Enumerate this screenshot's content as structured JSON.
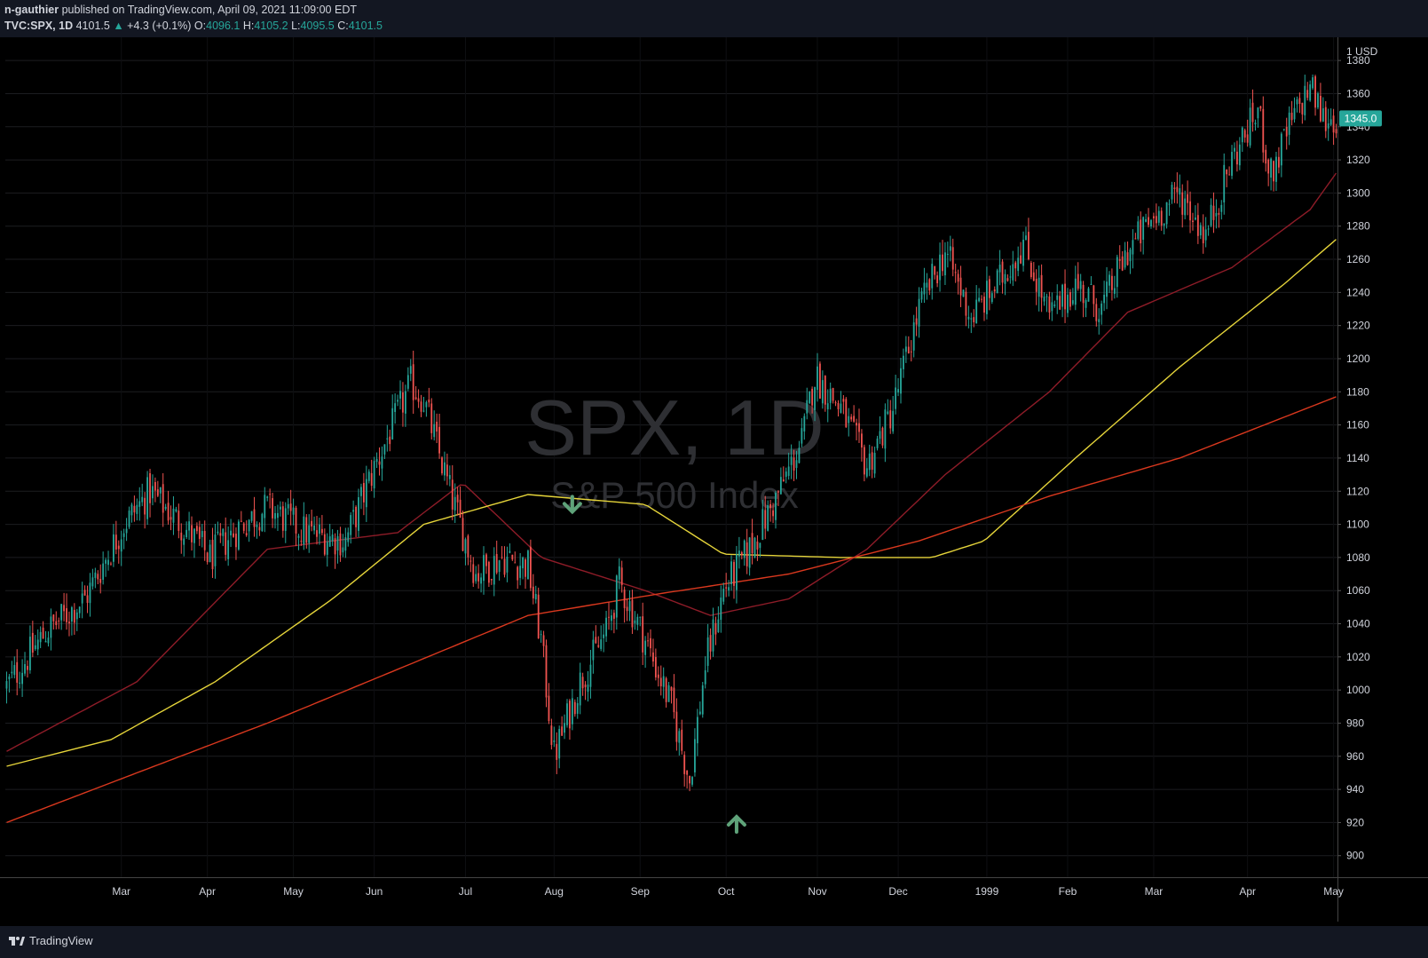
{
  "header": {
    "author": "n-gauthier",
    "published_text": "published on TradingView.com, April 09, 2021 11:09:00 EDT",
    "symbol": "TVC:SPX, 1D",
    "last": "4101.5",
    "change_arrow": "▲",
    "change": "+4.3 (+0.1%)",
    "open_label": "O:",
    "open": "4096.1",
    "high_label": "H:",
    "high": "4105.2",
    "low_label": "L:",
    "low": "4095.5",
    "close_label": "C:",
    "close": "4101.5"
  },
  "watermark": {
    "symbol": "SPX, 1D",
    "name": "S&P 500 Index"
  },
  "footer": {
    "brand": "TradingView"
  },
  "colors": {
    "up": "#26a69a",
    "down": "#ef5350",
    "ma_fast": "#8e1c28",
    "ma_mid": "#e5d43a",
    "ma_slow": "#d9381e",
    "background": "#000000",
    "price_tag": "#26a69a"
  },
  "chart_data": {
    "type": "candlestick",
    "ylim": [
      887,
      1394
    ],
    "y_ticks": [
      900,
      920,
      940,
      960,
      980,
      1000,
      1020,
      1040,
      1060,
      1080,
      1100,
      1120,
      1140,
      1160,
      1180,
      1200,
      1220,
      1240,
      1260,
      1280,
      1300,
      1320,
      1340,
      1360,
      1380
    ],
    "x_ticks": [
      "Mar",
      "Apr",
      "May",
      "Jun",
      "Jul",
      "Aug",
      "Sep",
      "Oct",
      "Nov",
      "Dec",
      "1999",
      "Feb",
      "Mar",
      "Apr",
      "May"
    ],
    "currency_label": "USD",
    "last_price_label": "1345.0",
    "last_price": 1345.0,
    "price_anchors": [
      [
        0,
        1002
      ],
      [
        15,
        1035
      ],
      [
        30,
        1055
      ],
      [
        45,
        1100
      ],
      [
        55,
        1120
      ],
      [
        70,
        1095
      ],
      [
        78,
        1080
      ],
      [
        90,
        1100
      ],
      [
        100,
        1110
      ],
      [
        115,
        1095
      ],
      [
        130,
        1090
      ],
      [
        140,
        1130
      ],
      [
        155,
        1185
      ],
      [
        160,
        1175
      ],
      [
        170,
        1120
      ],
      [
        180,
        1070
      ],
      [
        190,
        1080
      ],
      [
        200,
        1075
      ],
      [
        205,
        1030
      ],
      [
        210,
        960
      ],
      [
        220,
        1005
      ],
      [
        230,
        1035
      ],
      [
        235,
        1065
      ],
      [
        245,
        1030
      ],
      [
        255,
        990
      ],
      [
        262,
        945
      ],
      [
        268,
        1015
      ],
      [
        275,
        1060
      ],
      [
        285,
        1085
      ],
      [
        295,
        1115
      ],
      [
        305,
        1150
      ],
      [
        310,
        1190
      ],
      [
        320,
        1170
      ],
      [
        330,
        1135
      ],
      [
        340,
        1170
      ],
      [
        350,
        1230
      ],
      [
        360,
        1265
      ],
      [
        370,
        1225
      ],
      [
        380,
        1245
      ],
      [
        390,
        1270
      ],
      [
        400,
        1225
      ],
      [
        410,
        1245
      ],
      [
        420,
        1230
      ],
      [
        430,
        1265
      ],
      [
        440,
        1285
      ],
      [
        450,
        1300
      ],
      [
        460,
        1275
      ],
      [
        470,
        1320
      ],
      [
        480,
        1350
      ],
      [
        485,
        1310
      ],
      [
        492,
        1340
      ],
      [
        500,
        1365
      ],
      [
        505,
        1345
      ],
      [
        510,
        1345
      ]
    ],
    "events": [
      {
        "type": "arrow-down",
        "bar": 217,
        "price": 1106
      },
      {
        "type": "arrow-up",
        "bar": 280,
        "price": 924
      }
    ],
    "series": [
      {
        "type": "ohlc",
        "bars": 511
      },
      {
        "name": "",
        "type": "moving-average",
        "color": "#8e1c28",
        "points": [
          [
            0,
            963
          ],
          [
            50,
            1005
          ],
          [
            100,
            1085
          ],
          [
            150,
            1095
          ],
          [
            175,
            1125
          ],
          [
            205,
            1080
          ],
          [
            245,
            1060
          ],
          [
            270,
            1045
          ],
          [
            300,
            1055
          ],
          [
            330,
            1085
          ],
          [
            360,
            1130
          ],
          [
            400,
            1180
          ],
          [
            430,
            1228
          ],
          [
            470,
            1255
          ],
          [
            500,
            1290
          ],
          [
            510,
            1312
          ]
        ]
      },
      {
        "name": "",
        "type": "moving-average",
        "color": "#e5d43a",
        "points": [
          [
            0,
            954
          ],
          [
            40,
            970
          ],
          [
            80,
            1005
          ],
          [
            125,
            1055
          ],
          [
            160,
            1100
          ],
          [
            200,
            1118
          ],
          [
            245,
            1112
          ],
          [
            275,
            1082
          ],
          [
            320,
            1080
          ],
          [
            355,
            1080
          ],
          [
            375,
            1090
          ],
          [
            410,
            1140
          ],
          [
            450,
            1195
          ],
          [
            490,
            1245
          ],
          [
            510,
            1272
          ]
        ]
      },
      {
        "name": "",
        "type": "moving-average",
        "color": "#d9381e",
        "points": [
          [
            0,
            920
          ],
          [
            100,
            980
          ],
          [
            200,
            1045
          ],
          [
            250,
            1058
          ],
          [
            300,
            1070
          ],
          [
            350,
            1090
          ],
          [
            400,
            1117
          ],
          [
            450,
            1140
          ],
          [
            510,
            1177
          ]
        ]
      }
    ]
  }
}
